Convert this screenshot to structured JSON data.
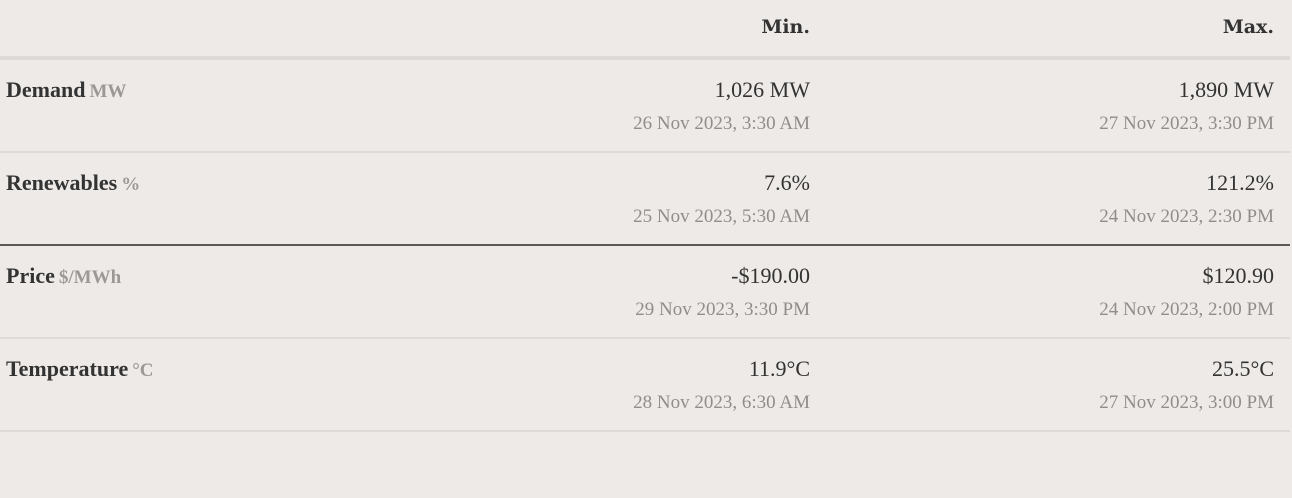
{
  "header": {
    "min_label": "Min.",
    "max_label": "Max."
  },
  "rows": [
    {
      "metric": "Demand",
      "unit": "MW",
      "min_value": "1,026 MW",
      "min_time": "26 Nov 2023, 3:30 AM",
      "max_value": "1,890 MW",
      "max_time": "27 Nov 2023, 3:30 PM"
    },
    {
      "metric": "Renewables",
      "unit": "%",
      "min_value": "7.6%",
      "min_time": "25 Nov 2023, 5:30 AM",
      "max_value": "121.2%",
      "max_time": "24 Nov 2023, 2:30 PM"
    },
    {
      "metric": "Price",
      "unit": "$/MWh",
      "min_value": "-$190.00",
      "min_time": "29 Nov 2023, 3:30 PM",
      "max_value": "$120.90",
      "max_time": "24 Nov 2023, 2:00 PM"
    },
    {
      "metric": "Temperature",
      "unit": "°C",
      "min_value": "11.9°C",
      "min_time": "28 Nov 2023, 6:30 AM",
      "max_value": "25.5°C",
      "max_time": "27 Nov 2023, 3:00 PM"
    }
  ]
}
